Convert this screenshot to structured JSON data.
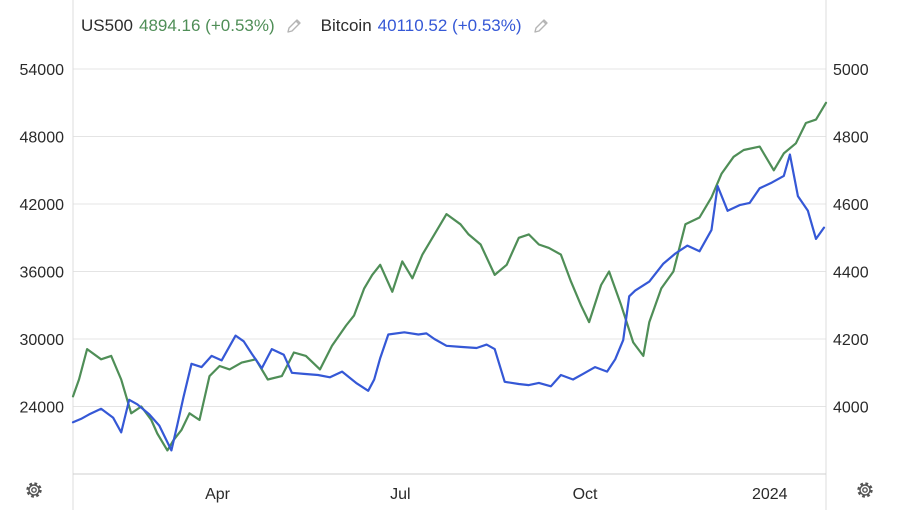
{
  "legend": {
    "s1_symbol": "US500",
    "s1_value": "4894.16",
    "s1_change": "(+0.53%)",
    "s2_symbol": "Bitcoin",
    "s2_value": "40110.52",
    "s2_change": "(+0.53%)",
    "edit_icon": "pencil-icon"
  },
  "settings_icon": "gear-icon",
  "colors": {
    "green": "#4f8e57",
    "blue": "#3558d6",
    "grid": "#e4e4e4",
    "axis_text": "#2a2a2a"
  },
  "chart_data": {
    "type": "line",
    "x_axis": {
      "tick_labels": [
        "Apr",
        "Jul",
        "Oct",
        "2024"
      ],
      "ticks": [
        "2023-04-01",
        "2023-07-01",
        "2023-10-01",
        "2024-01-01"
      ],
      "range": [
        "2023-01-19",
        "2024-01-29"
      ]
    },
    "y_left": {
      "ticks": [
        24000,
        30000,
        36000,
        42000,
        48000,
        54000
      ],
      "range": [
        18000,
        56400
      ]
    },
    "y_right": {
      "ticks": [
        4000,
        4200,
        4400,
        4600,
        4800,
        5000
      ],
      "range": [
        3800,
        5080
      ]
    },
    "grid": true,
    "series": [
      {
        "name": "Bitcoin",
        "axis": "left",
        "color": "#3558d6",
        "x": [
          "2023-01-19",
          "2023-01-23",
          "2023-01-27",
          "2023-02-02",
          "2023-02-08",
          "2023-02-12",
          "2023-02-16",
          "2023-02-20",
          "2023-02-26",
          "2023-03-03",
          "2023-03-09",
          "2023-03-12",
          "2023-03-15",
          "2023-03-19",
          "2023-03-24",
          "2023-03-29",
          "2023-04-03",
          "2023-04-10",
          "2023-04-14",
          "2023-04-18",
          "2023-04-23",
          "2023-04-28",
          "2023-05-04",
          "2023-05-08",
          "2023-05-14",
          "2023-05-21",
          "2023-05-27",
          "2023-06-02",
          "2023-06-09",
          "2023-06-15",
          "2023-06-18",
          "2023-06-21",
          "2023-06-25",
          "2023-07-03",
          "2023-07-10",
          "2023-07-14",
          "2023-07-18",
          "2023-07-24",
          "2023-07-31",
          "2023-08-08",
          "2023-08-13",
          "2023-08-17",
          "2023-08-22",
          "2023-08-29",
          "2023-09-03",
          "2023-09-08",
          "2023-09-14",
          "2023-09-19",
          "2023-09-25",
          "2023-09-30",
          "2023-10-06",
          "2023-10-12",
          "2023-10-16",
          "2023-10-20",
          "2023-10-23",
          "2023-10-26",
          "2023-11-02",
          "2023-11-09",
          "2023-11-15",
          "2023-11-21",
          "2023-11-27",
          "2023-12-03",
          "2023-12-06",
          "2023-12-11",
          "2023-12-17",
          "2023-12-22",
          "2023-12-27",
          "2024-01-02",
          "2024-01-08",
          "2024-01-11",
          "2024-01-15",
          "2024-01-20",
          "2024-01-24",
          "2024-01-28"
        ],
        "y": [
          22600,
          22900,
          23300,
          23800,
          23000,
          21700,
          24600,
          24200,
          23300,
          22300,
          20100,
          22400,
          24800,
          27800,
          27500,
          28500,
          28100,
          30300,
          29800,
          28700,
          27400,
          29100,
          28600,
          27000,
          26900,
          26800,
          26600,
          27100,
          26100,
          25400,
          26400,
          28300,
          30400,
          30600,
          30400,
          30500,
          30000,
          29400,
          29300,
          29200,
          29500,
          29100,
          26200,
          26000,
          25900,
          26100,
          25800,
          26800,
          26400,
          26900,
          27500,
          27100,
          28200,
          29900,
          33800,
          34300,
          35100,
          36700,
          37600,
          38300,
          37800,
          39700,
          43600,
          41400,
          41900,
          42100,
          43400,
          43900,
          44500,
          46400,
          42700,
          41400,
          38900,
          39900
        ]
      },
      {
        "name": "US500",
        "axis": "right",
        "color": "#4f8e57",
        "x": [
          "2023-01-19",
          "2023-01-22",
          "2023-01-26",
          "2023-02-02",
          "2023-02-07",
          "2023-02-12",
          "2023-02-17",
          "2023-02-22",
          "2023-02-27",
          "2023-03-02",
          "2023-03-07",
          "2023-03-10",
          "2023-03-14",
          "2023-03-18",
          "2023-03-23",
          "2023-03-28",
          "2023-04-02",
          "2023-04-07",
          "2023-04-13",
          "2023-04-20",
          "2023-04-26",
          "2023-05-03",
          "2023-05-09",
          "2023-05-15",
          "2023-05-22",
          "2023-05-28",
          "2023-06-04",
          "2023-06-08",
          "2023-06-13",
          "2023-06-17",
          "2023-06-21",
          "2023-06-27",
          "2023-07-02",
          "2023-07-07",
          "2023-07-12",
          "2023-07-18",
          "2023-07-24",
          "2023-07-31",
          "2023-08-04",
          "2023-08-10",
          "2023-08-17",
          "2023-08-23",
          "2023-08-29",
          "2023-09-03",
          "2023-09-08",
          "2023-09-13",
          "2023-09-19",
          "2023-09-24",
          "2023-09-29",
          "2023-10-03",
          "2023-10-09",
          "2023-10-13",
          "2023-10-19",
          "2023-10-25",
          "2023-10-30",
          "2023-11-02",
          "2023-11-08",
          "2023-11-14",
          "2023-11-20",
          "2023-11-27",
          "2023-12-03",
          "2023-12-08",
          "2023-12-14",
          "2023-12-19",
          "2023-12-27",
          "2024-01-03",
          "2024-01-08",
          "2024-01-14",
          "2024-01-19",
          "2024-01-24",
          "2024-01-29"
        ],
        "y": [
          4030,
          4080,
          4170,
          4140,
          4150,
          4080,
          3980,
          4000,
          3960,
          3920,
          3870,
          3900,
          3930,
          3980,
          3960,
          4090,
          4120,
          4110,
          4130,
          4140,
          4080,
          4090,
          4160,
          4150,
          4110,
          4180,
          4240,
          4270,
          4350,
          4390,
          4420,
          4340,
          4430,
          4380,
          4450,
          4510,
          4570,
          4540,
          4510,
          4480,
          4390,
          4420,
          4500,
          4510,
          4480,
          4470,
          4450,
          4370,
          4300,
          4250,
          4360,
          4400,
          4300,
          4190,
          4150,
          4250,
          4350,
          4400,
          4540,
          4560,
          4620,
          4690,
          4740,
          4760,
          4770,
          4700,
          4750,
          4780,
          4840,
          4850,
          4900
        ]
      }
    ]
  }
}
